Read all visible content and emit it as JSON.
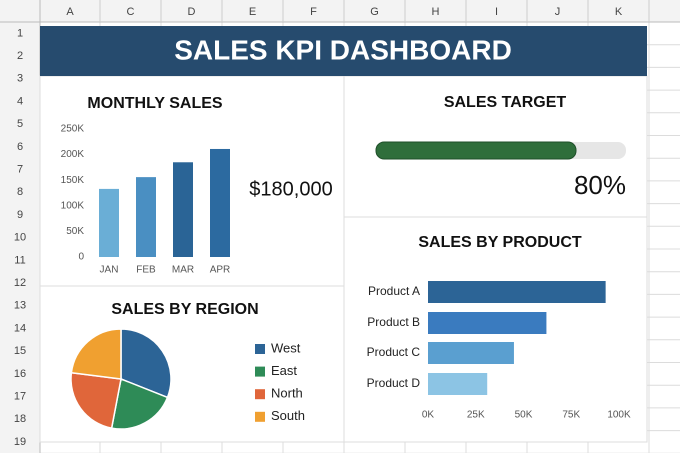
{
  "spreadsheet": {
    "columns": [
      "A",
      "C",
      "D",
      "E",
      "F",
      "G",
      "H",
      "I",
      "J",
      "K"
    ],
    "rows": [
      1,
      2,
      3,
      4,
      5,
      6,
      7,
      8,
      9,
      10,
      11,
      12,
      13,
      14,
      15,
      16,
      17,
      18,
      19
    ]
  },
  "dashboard_title": "SALES KPI DASHBOARD",
  "chart_data": [
    {
      "type": "bar",
      "title": "MONTHLY SALES",
      "annotation": "$180,000",
      "categories": [
        "JAN",
        "FEB",
        "MAR",
        "APR"
      ],
      "values": [
        133000,
        156000,
        185000,
        211000
      ],
      "colors": [
        "#6aaed6",
        "#4a8fc2",
        "#2a6496",
        "#2c6aa0"
      ],
      "ylim": [
        0,
        250000
      ],
      "yticks": [
        0,
        {
          "value": 50000,
          "label": "50K"
        },
        {
          "value": 100000,
          "label": "100K"
        },
        {
          "value": 150000,
          "label": "150K"
        },
        {
          "value": 200000,
          "label": "200K"
        },
        {
          "value": 250000,
          "label": "250K"
        }
      ]
    },
    {
      "type": "progress",
      "title": "SALES TARGET",
      "values": [
        80
      ],
      "value_labels": [
        "80%"
      ],
      "xlim": [
        0,
        100
      ],
      "color": "#2f6e3b"
    },
    {
      "type": "pie",
      "title": "SALES BY REGION",
      "series": [
        {
          "name": "West",
          "color": "#2c6496",
          "values": [
            31
          ]
        },
        {
          "name": "East",
          "color": "#2e8b57",
          "values": [
            22
          ]
        },
        {
          "name": "North",
          "color": "#e0663a",
          "values": [
            24
          ]
        },
        {
          "name": "South",
          "color": "#f0a030",
          "values": [
            23
          ]
        }
      ]
    },
    {
      "type": "hbar",
      "title": "SALES BY PRODUCT",
      "categories": [
        "Product A",
        "Product B",
        "Product C",
        "Product D"
      ],
      "values": [
        93000,
        62000,
        45000,
        31000
      ],
      "colors": [
        "#2c6496",
        "#3a7bbf",
        "#5a9fd0",
        "#8cc4e4"
      ],
      "xlim": [
        0,
        100000
      ],
      "xticks": [
        {
          "value": 0,
          "label": "0K"
        },
        {
          "value": 25000,
          "label": "25K"
        },
        {
          "value": 50000,
          "label": "50K"
        },
        {
          "value": 75000,
          "label": "75K"
        },
        {
          "value": 100000,
          "label": "100K"
        }
      ]
    }
  ]
}
